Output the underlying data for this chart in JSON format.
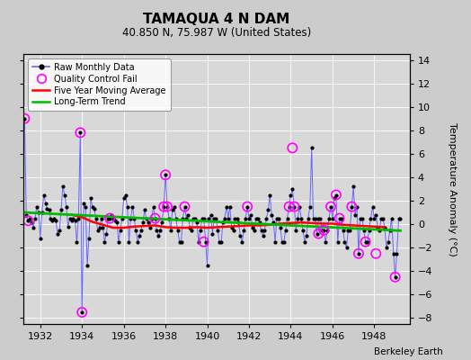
{
  "title": "TAMAQUA 4 N DAM",
  "subtitle": "40.850 N, 75.987 W (United States)",
  "credit": "Berkeley Earth",
  "ylabel_right": "Temperature Anomaly (°C)",
  "xlim": [
    1931.2,
    1949.7
  ],
  "ylim": [
    -8.5,
    14.5
  ],
  "yticks": [
    -8,
    -6,
    -4,
    -2,
    0,
    2,
    4,
    6,
    8,
    10,
    12,
    14
  ],
  "xticks": [
    1932,
    1934,
    1936,
    1938,
    1940,
    1942,
    1944,
    1946,
    1948
  ],
  "bg_color": "#cccccc",
  "plot_bg_color": "#d8d8d8",
  "grid_color": "#ffffff",
  "raw_color": "#6666ff",
  "raw_dot_color": "#000000",
  "qc_color": "#ff00ff",
  "moving_avg_color": "#ff0000",
  "trend_color": "#00bb00",
  "raw_data_x": [
    1931.25,
    1931.33,
    1931.42,
    1931.5,
    1931.58,
    1931.67,
    1931.75,
    1931.83,
    1931.92,
    1932.0,
    1932.08,
    1932.17,
    1932.25,
    1932.33,
    1932.42,
    1932.5,
    1932.58,
    1932.67,
    1932.75,
    1932.83,
    1932.92,
    1933.0,
    1933.08,
    1933.17,
    1933.25,
    1933.33,
    1933.42,
    1933.5,
    1933.58,
    1933.67,
    1933.75,
    1933.83,
    1933.92,
    1934.0,
    1934.08,
    1934.17,
    1934.25,
    1934.33,
    1934.42,
    1934.5,
    1934.58,
    1934.67,
    1934.75,
    1934.83,
    1934.92,
    1935.0,
    1935.08,
    1935.17,
    1935.25,
    1935.33,
    1935.42,
    1935.5,
    1935.58,
    1935.67,
    1935.75,
    1935.83,
    1935.92,
    1936.0,
    1936.08,
    1936.17,
    1936.25,
    1936.33,
    1936.42,
    1936.5,
    1936.58,
    1936.67,
    1936.75,
    1936.83,
    1936.92,
    1937.0,
    1937.08,
    1937.17,
    1937.25,
    1937.33,
    1937.42,
    1937.5,
    1937.58,
    1937.67,
    1937.75,
    1937.83,
    1937.92,
    1938.0,
    1938.08,
    1938.17,
    1938.25,
    1938.33,
    1938.42,
    1938.5,
    1938.58,
    1938.67,
    1938.75,
    1938.83,
    1938.92,
    1939.0,
    1939.08,
    1939.17,
    1939.25,
    1939.33,
    1939.42,
    1939.5,
    1939.58,
    1939.67,
    1939.75,
    1939.83,
    1939.92,
    1940.0,
    1940.08,
    1940.17,
    1940.25,
    1940.33,
    1940.42,
    1940.5,
    1940.58,
    1940.67,
    1940.75,
    1940.83,
    1940.92,
    1941.0,
    1941.08,
    1941.17,
    1941.25,
    1941.33,
    1941.42,
    1941.5,
    1941.58,
    1941.67,
    1941.75,
    1941.83,
    1941.92,
    1942.0,
    1942.08,
    1942.17,
    1942.25,
    1942.33,
    1942.42,
    1942.5,
    1942.58,
    1942.67,
    1942.75,
    1942.83,
    1942.92,
    1943.0,
    1943.08,
    1943.17,
    1943.25,
    1943.33,
    1943.42,
    1943.5,
    1943.58,
    1943.67,
    1943.75,
    1943.83,
    1943.92,
    1944.0,
    1944.08,
    1944.17,
    1944.25,
    1944.33,
    1944.42,
    1944.5,
    1944.58,
    1944.67,
    1944.75,
    1944.83,
    1944.92,
    1945.0,
    1945.08,
    1945.17,
    1945.25,
    1945.33,
    1945.42,
    1945.5,
    1945.58,
    1945.67,
    1945.75,
    1945.83,
    1945.92,
    1946.0,
    1946.08,
    1946.17,
    1946.25,
    1946.33,
    1946.42,
    1946.5,
    1946.58,
    1946.67,
    1946.75,
    1946.83,
    1946.92,
    1947.0,
    1947.08,
    1947.17,
    1947.25,
    1947.33,
    1947.42,
    1947.5,
    1947.58,
    1947.67,
    1947.75,
    1947.83,
    1947.92,
    1948.0,
    1948.08,
    1948.17,
    1948.25,
    1948.33,
    1948.42,
    1948.5,
    1948.58,
    1948.67,
    1948.75,
    1948.83,
    1948.92,
    1949.0,
    1949.08,
    1949.17,
    1949.25
  ],
  "raw_data_y": [
    9.0,
    0.8,
    0.3,
    0.5,
    0.2,
    -0.3,
    0.5,
    1.5,
    1.0,
    -1.2,
    1.0,
    2.5,
    1.8,
    1.3,
    1.2,
    0.5,
    0.3,
    0.5,
    0.3,
    -0.8,
    -0.5,
    1.2,
    3.2,
    2.5,
    1.5,
    -0.2,
    0.5,
    0.3,
    0.5,
    0.3,
    -1.5,
    0.5,
    7.8,
    -7.5,
    1.8,
    1.5,
    -3.5,
    -1.2,
    2.2,
    1.5,
    1.3,
    0.5,
    -0.5,
    -0.3,
    0.5,
    -0.3,
    -1.5,
    -0.8,
    0.5,
    0.5,
    0.8,
    0.5,
    0.3,
    0.2,
    -1.5,
    -0.5,
    0.5,
    2.2,
    2.5,
    1.5,
    -1.5,
    0.5,
    1.5,
    0.5,
    -0.5,
    -1.5,
    -1.0,
    -0.5,
    0.2,
    1.2,
    0.5,
    0.2,
    -0.3,
    0.5,
    1.5,
    0.5,
    -0.5,
    -1.0,
    -0.5,
    0.2,
    1.5,
    4.2,
    1.5,
    0.5,
    -0.5,
    1.2,
    1.5,
    0.5,
    -0.5,
    -1.5,
    -1.5,
    0.5,
    1.5,
    0.5,
    0.8,
    -0.3,
    -0.5,
    0.5,
    0.5,
    0.2,
    -1.5,
    -0.5,
    0.5,
    0.5,
    -1.5,
    -3.5,
    0.5,
    0.8,
    -0.8,
    0.5,
    0.5,
    -0.5,
    -1.5,
    -1.5,
    0.2,
    0.5,
    1.5,
    0.5,
    1.5,
    -0.3,
    -0.5,
    0.5,
    0.5,
    0.2,
    -1.0,
    -1.5,
    -0.5,
    0.5,
    1.5,
    0.5,
    0.8,
    -0.3,
    -0.5,
    0.5,
    0.5,
    0.2,
    -0.5,
    -1.0,
    -0.5,
    0.5,
    1.2,
    2.5,
    0.8,
    0.2,
    -1.5,
    0.5,
    0.5,
    -0.3,
    -1.5,
    -1.5,
    -0.5,
    0.5,
    1.5,
    2.5,
    3.0,
    1.5,
    -0.5,
    0.5,
    1.5,
    0.5,
    -0.5,
    -1.5,
    -1.0,
    0.5,
    1.5,
    6.5,
    0.5,
    0.5,
    -0.8,
    0.5,
    0.5,
    -0.5,
    -0.5,
    -1.5,
    -0.5,
    0.5,
    1.5,
    0.5,
    2.2,
    2.5,
    -1.5,
    0.5,
    0.5,
    -0.5,
    -1.5,
    -2.0,
    -0.5,
    -0.5,
    1.5,
    3.2,
    0.8,
    1.5,
    -2.5,
    0.5,
    0.5,
    -0.5,
    -1.5,
    -1.5,
    -0.5,
    0.5,
    1.5,
    0.5,
    0.8,
    -0.3,
    -0.5,
    0.5,
    0.5,
    -0.3,
    -2.0,
    -1.5,
    -0.5,
    0.5,
    -2.5,
    -4.5,
    -2.5,
    0.5,
    0.5
  ],
  "qc_fail_x": [
    1931.25,
    1931.42,
    1933.92,
    1934.0,
    1935.33,
    1937.5,
    1937.92,
    1938.0,
    1938.08,
    1938.92,
    1939.83,
    1941.92,
    1943.92,
    1944.08,
    1944.17,
    1945.33,
    1945.58,
    1945.92,
    1946.17,
    1946.33,
    1946.92,
    1947.25,
    1947.58,
    1948.08,
    1949.0
  ],
  "qc_fail_y": [
    9.0,
    0.3,
    7.8,
    -7.5,
    0.5,
    0.5,
    1.5,
    4.2,
    1.5,
    1.5,
    -1.5,
    1.5,
    1.5,
    6.5,
    1.5,
    -0.8,
    -0.5,
    1.5,
    2.5,
    0.5,
    1.5,
    -2.5,
    -1.5,
    -2.5,
    -4.5
  ],
  "moving_avg_x": [
    1933.5,
    1934.0,
    1934.5,
    1935.0,
    1935.5,
    1936.0,
    1936.5,
    1937.0,
    1937.5,
    1938.0,
    1938.5,
    1939.0,
    1939.5,
    1940.0,
    1940.5,
    1941.0,
    1941.5,
    1942.0,
    1942.5,
    1943.0,
    1943.5,
    1944.0,
    1944.5,
    1945.0,
    1945.5,
    1946.0,
    1946.5,
    1947.0,
    1947.5,
    1948.0,
    1948.5
  ],
  "moving_avg_y": [
    0.8,
    0.6,
    0.2,
    -0.05,
    -0.3,
    -0.3,
    -0.2,
    -0.15,
    -0.1,
    -0.25,
    -0.3,
    -0.3,
    -0.25,
    -0.3,
    -0.25,
    -0.2,
    -0.15,
    -0.1,
    -0.1,
    -0.05,
    0.05,
    0.1,
    0.15,
    0.1,
    0.05,
    0.05,
    -0.05,
    -0.1,
    -0.15,
    -0.2,
    -0.25
  ],
  "trend_x": [
    1931.25,
    1949.25
  ],
  "trend_y": [
    1.0,
    -0.55
  ]
}
